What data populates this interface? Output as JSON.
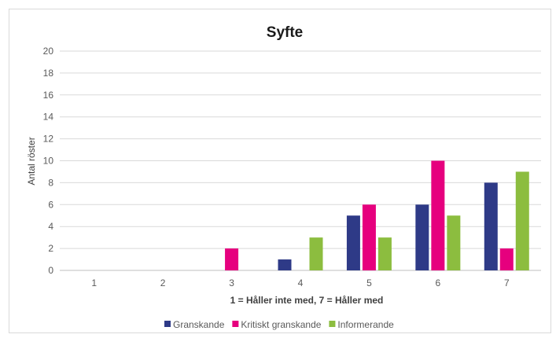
{
  "chart_data": {
    "type": "bar",
    "title": "Syfte",
    "xlabel": "1 = Håller inte med, 7 = Håller med",
    "ylabel": "Antal röster",
    "categories": [
      "1",
      "2",
      "3",
      "4",
      "5",
      "6",
      "7"
    ],
    "ylim": [
      0,
      20
    ],
    "yticks": [
      0,
      2,
      4,
      6,
      8,
      10,
      12,
      14,
      16,
      18,
      20
    ],
    "grid": true,
    "legend_position": "bottom",
    "series": [
      {
        "name": "Granskande",
        "color": "#2e3a87",
        "values": [
          0,
          0,
          0,
          1,
          5,
          6,
          8
        ]
      },
      {
        "name": "Kritiskt granskande",
        "color": "#e6007e",
        "values": [
          0,
          0,
          2,
          0,
          6,
          10,
          2
        ]
      },
      {
        "name": "Informerande",
        "color": "#8cbd3f",
        "values": [
          0,
          0,
          0,
          3,
          3,
          5,
          9
        ]
      }
    ]
  }
}
